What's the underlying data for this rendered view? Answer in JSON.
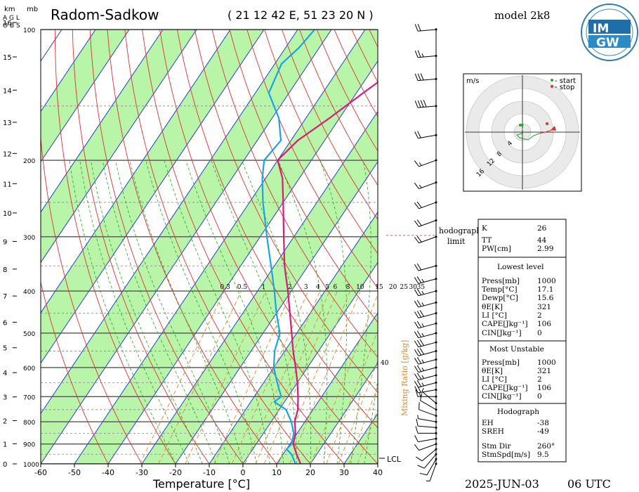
{
  "header": {
    "station": "Radom-Sadkow",
    "coords": "( 21 12 42 E, 51 23 20 N )",
    "model": "model 2k8",
    "date": "2025-JUN-03",
    "time": "06 UTC"
  },
  "logo": {
    "top": "IM",
    "bottom": "GW"
  },
  "axis_labels": {
    "km": "km",
    "agl": "A G L",
    "obs": "O B S",
    "mb": "mb",
    "temperature": "Temperature [°C]",
    "mixing_ratio": "Mixing Ratio [g/kg]",
    "lcl": "LCL"
  },
  "hodograph": {
    "unit": "m/s",
    "start_label": "- start",
    "stop_label": "- stop",
    "ring_labels": [
      "4",
      "8",
      "12",
      "16"
    ],
    "limit_label_1": "hodograph",
    "limit_label_2": "limit"
  },
  "indices": {
    "K_label": "K",
    "K": "26",
    "TT_label": "TT",
    "TT": "44",
    "PW_label": "PW[cm]",
    "PW": "2.99",
    "lowest_title": "Lowest level",
    "low_press_label": "Press[mb]",
    "low_press": "1000",
    "low_temp_label": "Temp[°C]",
    "low_temp": "17.1",
    "low_dewp_label": "Dewp[°C]",
    "low_dewp": "15.6",
    "low_thetae_label": "θE[K]",
    "low_thetae": "321",
    "low_li_label": "LI [°C]",
    "low_li": "2",
    "low_cape_label": "CAPE[Jkg⁻¹]",
    "low_cape": "106",
    "low_cin_label": "CIN[Jkg⁻¹]",
    "low_cin": "0",
    "mu_title": "Most Unstable",
    "mu_press_label": "Press[mb]",
    "mu_press": "1000",
    "mu_thetae_label": "θE[K]",
    "mu_thetae": "321",
    "mu_li_label": "LI [°C]",
    "mu_li": "2",
    "mu_cape_label": "CAPE[Jkg⁻¹]",
    "mu_cape": "106",
    "mu_cin_label": "CIN[Jkg⁻¹]",
    "mu_cin": "0",
    "hodo_title": "Hodograph",
    "eh_label": "EH",
    "eh": "-38",
    "sreh_label": "SREH",
    "sreh": "-49",
    "stmdir_label": "Stm Dir",
    "stmdir": "260°",
    "stmspd_label": "StmSpd[m/s]",
    "stmspd": "9.5"
  },
  "chart_data": {
    "type": "line",
    "title": "Radom-Sadkow",
    "xlabel": "Temperature [°C]",
    "ylabel": "mb",
    "x_ticks": [
      -60,
      -50,
      -40,
      -30,
      -20,
      -10,
      0,
      10,
      20,
      30,
      40
    ],
    "pressure_ticks": [
      100,
      200,
      300,
      400,
      500,
      600,
      700,
      800,
      900,
      1000
    ],
    "km_ticks": [
      0,
      1,
      2,
      3,
      4,
      5,
      6,
      7,
      8,
      9,
      10,
      11,
      12,
      13,
      14,
      15,
      16
    ],
    "mixing_ratio_labels": [
      "0.3",
      "0.5",
      "1",
      "2",
      "3",
      "4",
      "5",
      "6",
      "8",
      "10",
      "15",
      "20",
      "25",
      "30",
      "35"
    ],
    "mixing_ratio_extra_label": "40",
    "series": [
      {
        "name": "Temperature",
        "color": "#d81b78",
        "points": [
          [
            1000,
            17.1
          ],
          [
            950,
            14
          ],
          [
            925,
            12.5
          ],
          [
            900,
            11
          ],
          [
            850,
            9.5
          ],
          [
            800,
            7
          ],
          [
            750,
            5.5
          ],
          [
            700,
            3
          ],
          [
            650,
            0
          ],
          [
            600,
            -3.5
          ],
          [
            550,
            -7.5
          ],
          [
            500,
            -11.5
          ],
          [
            450,
            -16
          ],
          [
            400,
            -21
          ],
          [
            350,
            -27
          ],
          [
            300,
            -33
          ],
          [
            250,
            -40
          ],
          [
            220,
            -45
          ],
          [
            200,
            -50
          ],
          [
            180,
            -48
          ],
          [
            160,
            -43
          ],
          [
            140,
            -38
          ],
          [
            120,
            -32
          ],
          [
            110,
            -30
          ],
          [
            100,
            -27
          ]
        ]
      },
      {
        "name": "Dewpoint",
        "color": "#1aa3e8",
        "points": [
          [
            1000,
            15.6
          ],
          [
            950,
            12.5
          ],
          [
            925,
            10
          ],
          [
            900,
            10.5
          ],
          [
            850,
            9
          ],
          [
            800,
            6
          ],
          [
            750,
            2
          ],
          [
            720,
            -3
          ],
          [
            700,
            -2
          ],
          [
            650,
            -6
          ],
          [
            600,
            -10
          ],
          [
            550,
            -13
          ],
          [
            500,
            -15
          ],
          [
            450,
            -20
          ],
          [
            400,
            -25
          ],
          [
            350,
            -31
          ],
          [
            300,
            -38
          ],
          [
            250,
            -46
          ],
          [
            220,
            -51
          ],
          [
            200,
            -54
          ],
          [
            180,
            -53
          ],
          [
            160,
            -58
          ],
          [
            140,
            -66
          ],
          [
            120,
            -68
          ],
          [
            110,
            -66
          ],
          [
            100,
            -65
          ]
        ]
      }
    ],
    "wind_barbs": [
      {
        "p": 1000,
        "spd": 5,
        "dir": 200
      },
      {
        "p": 975,
        "spd": 10,
        "dir": 210
      },
      {
        "p": 950,
        "spd": 10,
        "dir": 220
      },
      {
        "p": 925,
        "spd": 10,
        "dir": 230
      },
      {
        "p": 900,
        "spd": 10,
        "dir": 250
      },
      {
        "p": 875,
        "spd": 10,
        "dir": 260
      },
      {
        "p": 850,
        "spd": 10,
        "dir": 270
      },
      {
        "p": 825,
        "spd": 10,
        "dir": 275
      },
      {
        "p": 800,
        "spd": 5,
        "dir": 280
      },
      {
        "p": 775,
        "spd": 10,
        "dir": 290
      },
      {
        "p": 750,
        "spd": 10,
        "dir": 300
      },
      {
        "p": 725,
        "spd": 5,
        "dir": 310
      },
      {
        "p": 700,
        "spd": 15,
        "dir": 270
      },
      {
        "p": 675,
        "spd": 20,
        "dir": 260
      },
      {
        "p": 650,
        "spd": 25,
        "dir": 255
      },
      {
        "p": 625,
        "spd": 25,
        "dir": 255
      },
      {
        "p": 600,
        "spd": 25,
        "dir": 255
      },
      {
        "p": 575,
        "spd": 25,
        "dir": 255
      },
      {
        "p": 550,
        "spd": 30,
        "dir": 255
      },
      {
        "p": 525,
        "spd": 30,
        "dir": 255
      },
      {
        "p": 500,
        "spd": 25,
        "dir": 255
      },
      {
        "p": 475,
        "spd": 25,
        "dir": 255
      },
      {
        "p": 450,
        "spd": 30,
        "dir": 255
      },
      {
        "p": 425,
        "spd": 25,
        "dir": 255
      },
      {
        "p": 400,
        "spd": 25,
        "dir": 255
      },
      {
        "p": 375,
        "spd": 25,
        "dir": 255
      },
      {
        "p": 350,
        "spd": 20,
        "dir": 255
      },
      {
        "p": 300,
        "spd": 20,
        "dir": 250
      },
      {
        "p": 275,
        "spd": 20,
        "dir": 250
      },
      {
        "p": 250,
        "spd": 20,
        "dir": 250
      },
      {
        "p": 225,
        "spd": 15,
        "dir": 250
      },
      {
        "p": 200,
        "spd": 15,
        "dir": 250
      },
      {
        "p": 175,
        "spd": 20,
        "dir": 260
      },
      {
        "p": 150,
        "spd": 40,
        "dir": 265
      },
      {
        "p": 130,
        "spd": 30,
        "dir": 265
      },
      {
        "p": 115,
        "spd": 25,
        "dir": 265
      },
      {
        "p": 100,
        "spd": 20,
        "dir": 265
      }
    ]
  }
}
